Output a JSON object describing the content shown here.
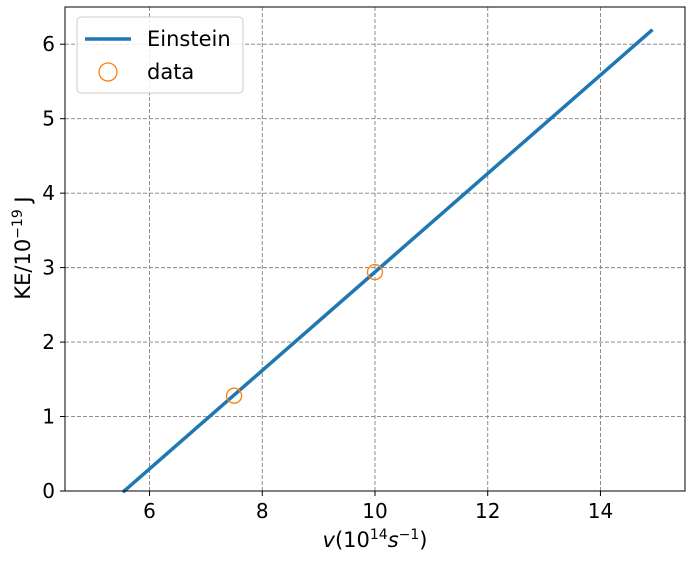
{
  "chart_data": {
    "type": "line",
    "title": "",
    "xlabel_parts": {
      "v": "v",
      "open": "(10",
      "exp": "14",
      "s": "s",
      "sexp": "−1",
      "close": ")"
    },
    "ylabel_parts": {
      "base": "KE/10",
      "exp": "−19",
      "unit": " J"
    },
    "xlim": [
      4.5,
      15.5
    ],
    "ylim": [
      0,
      6.5
    ],
    "xticks": [
      6,
      8,
      10,
      12,
      14
    ],
    "yticks": [
      0,
      1,
      2,
      3,
      4,
      5,
      6
    ],
    "grid": true,
    "legend_position": "top-left",
    "series": [
      {
        "name": "Einstein",
        "kind": "line",
        "color": "#1f77b4",
        "x": [
          5.55,
          14.9
        ],
        "y": [
          0.0,
          6.18
        ]
      },
      {
        "name": "data",
        "kind": "scatter",
        "marker": "open-circle",
        "color": "#ff7f0e",
        "x": [
          7.5,
          10.0
        ],
        "y": [
          1.28,
          2.94
        ]
      }
    ]
  }
}
